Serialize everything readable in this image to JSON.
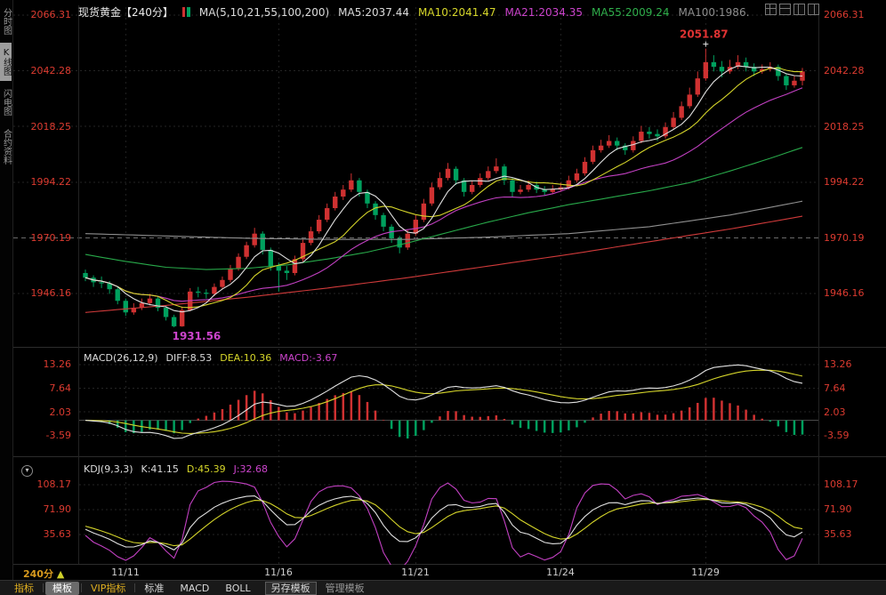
{
  "header": {
    "title": "现货黄金【240分】",
    "ma_group": "MA(5,10,21,55,100,200)",
    "ma_values": [
      {
        "label": "MA5:2037.44"
      },
      {
        "label": "MA10:2041.47"
      },
      {
        "label": "MA21:2034.35"
      },
      {
        "label": "MA55:2009.24"
      },
      {
        "label": "MA100:1986."
      }
    ]
  },
  "sidebar": {
    "items": [
      {
        "label": "分时图",
        "selected": false
      },
      {
        "label": "K线图",
        "selected": true
      },
      {
        "label": "闪电图",
        "selected": false
      },
      {
        "label": "合约资料",
        "selected": false
      }
    ]
  },
  "main": {
    "y_labels": [
      "2066.31",
      "2042.28",
      "2018.25",
      "1994.22",
      "1970.19",
      "1946.16"
    ],
    "high_annotation": "2051.87",
    "low_annotation": "1931.56"
  },
  "macd": {
    "header": "MACD(26,12,9)",
    "diff_label": "DIFF:8.53",
    "dea_label": "DEA:10.36",
    "macd_label": "MACD:-3.67",
    "y_labels": [
      "13.26",
      "7.64",
      "2.03",
      "-3.59"
    ]
  },
  "kdj": {
    "header": "KDJ(9,3,3)",
    "k_label": "K:41.15",
    "d_label": "D:45.39",
    "j_label": "J:32.68",
    "y_labels": [
      "108.17",
      "71.90",
      "35.63"
    ]
  },
  "footer": {
    "period_label": "240分",
    "period_arrow": "▲",
    "x_labels": [
      "11/11",
      "11/16",
      "11/21",
      "11/24",
      "11/29"
    ]
  },
  "toolbar": {
    "items": [
      {
        "label": "指标"
      },
      {
        "label": "模板"
      },
      {
        "label": "VIP指标"
      },
      {
        "label": "标准"
      },
      {
        "label": "MACD"
      },
      {
        "label": "BOLL"
      },
      {
        "label": "另存模板"
      },
      {
        "label": "管理模板"
      }
    ]
  },
  "chart_data": {
    "type": "candlestick",
    "instrument": "现货黄金",
    "period": "240分",
    "y_axis": [
      2066.31,
      2042.28,
      2018.25,
      1994.22,
      1970.19,
      1946.16
    ],
    "x_axis": [
      {
        "label": "11/11",
        "index": 5
      },
      {
        "label": "11/16",
        "index": 24
      },
      {
        "label": "11/21",
        "index": 41
      },
      {
        "label": "11/24",
        "index": 59
      },
      {
        "label": "11/29",
        "index": 77
      }
    ],
    "colors": {
      "up": "#cf3131",
      "down": "#00a05e",
      "ma5": "#e0e0e0",
      "ma10": "#d4d42a",
      "ma21": "#c240c2",
      "ma55": "#28a94a",
      "ma100": "#8f8f8f",
      "ma200": "#cf3a3a",
      "diff": "#e0e0e0",
      "dea": "#d4d42a",
      "k": "#e0e0e0",
      "d": "#d4d42a",
      "j": "#c240c2",
      "axis_text": "#dd3b30"
    },
    "candles": [
      [
        1955,
        1956.5,
        1951.5,
        1953
      ],
      [
        1953,
        1954,
        1949,
        1951
      ],
      [
        1951,
        1953.5,
        1948.5,
        1950.5
      ],
      [
        1950.5,
        1951.5,
        1946,
        1948
      ],
      [
        1948,
        1949,
        1941.5,
        1943
      ],
      [
        1943,
        1944,
        1936.5,
        1938
      ],
      [
        1938,
        1942,
        1937,
        1940
      ],
      [
        1940,
        1944,
        1939,
        1942
      ],
      [
        1942,
        1946,
        1941,
        1944
      ],
      [
        1944,
        1945,
        1938.5,
        1940
      ],
      [
        1940,
        1941,
        1934.5,
        1936
      ],
      [
        1936,
        1937,
        1931.56,
        1932
      ],
      [
        1932,
        1940.5,
        1931.8,
        1939
      ],
      [
        1939,
        1948.5,
        1938.5,
        1947
      ],
      [
        1947,
        1949,
        1944.5,
        1946.5
      ],
      [
        1946.5,
        1948,
        1944,
        1946
      ],
      [
        1946,
        1950.5,
        1945,
        1949
      ],
      [
        1949,
        1953.5,
        1948,
        1952
      ],
      [
        1952,
        1958.5,
        1951,
        1957
      ],
      [
        1957,
        1963.5,
        1956,
        1962
      ],
      [
        1962,
        1968.5,
        1961,
        1967
      ],
      [
        1967,
        1974.5,
        1966,
        1972
      ],
      [
        1972,
        1973,
        1963,
        1965
      ],
      [
        1965,
        1966,
        1956,
        1958
      ],
      [
        1958,
        1959.5,
        1947,
        1956
      ],
      [
        1956,
        1958,
        1952,
        1955
      ],
      [
        1955,
        1962.5,
        1954,
        1961
      ],
      [
        1961,
        1969.5,
        1960,
        1968
      ],
      [
        1968,
        1975,
        1967,
        1973
      ],
      [
        1973,
        1980,
        1972,
        1978
      ],
      [
        1978,
        1985,
        1977,
        1983
      ],
      [
        1983,
        1990,
        1982,
        1988
      ],
      [
        1988,
        1993,
        1986.5,
        1991
      ],
      [
        1991,
        1998,
        1990,
        1995
      ],
      [
        1995,
        1996,
        1988,
        1990
      ],
      [
        1990,
        1991,
        1983,
        1985
      ],
      [
        1985,
        1986,
        1978,
        1980
      ],
      [
        1980,
        1981,
        1973,
        1975
      ],
      [
        1975,
        1976,
        1968,
        1970
      ],
      [
        1970,
        1971,
        1963.5,
        1966
      ],
      [
        1966,
        1973.5,
        1965,
        1972
      ],
      [
        1972,
        1980,
        1971,
        1978
      ],
      [
        1978,
        1987,
        1977,
        1985
      ],
      [
        1985,
        1994,
        1984,
        1992
      ],
      [
        1992,
        1998.5,
        1991,
        1996
      ],
      [
        1996,
        2002.5,
        1995,
        2000
      ],
      [
        2000,
        2001,
        1993,
        1995
      ],
      [
        1995,
        1996,
        1988,
        1990
      ],
      [
        1990,
        1995,
        1989,
        1993
      ],
      [
        1993,
        1998,
        1992,
        1996
      ],
      [
        1996,
        2001,
        1995,
        1999
      ],
      [
        1999,
        2004.5,
        1998,
        2001
      ],
      [
        2001,
        2002,
        1993,
        1995
      ],
      [
        1995,
        1996,
        1988,
        1990
      ],
      [
        1990,
        1993,
        1989,
        1991
      ],
      [
        1991,
        1995,
        1990,
        1993
      ],
      [
        1993,
        1994.5,
        1989.5,
        1991
      ],
      [
        1991,
        1992.5,
        1988.5,
        1990
      ],
      [
        1990,
        1993,
        1989,
        1991
      ],
      [
        1991,
        1994,
        1990,
        1992
      ],
      [
        1992,
        1997,
        1991,
        1995
      ],
      [
        1995,
        2000,
        1994,
        1998
      ],
      [
        1998,
        2005,
        1997,
        2003
      ],
      [
        2003,
        2010,
        2002,
        2008
      ],
      [
        2008,
        2012.5,
        2007,
        2010
      ],
      [
        2010,
        2014.5,
        2009,
        2012
      ],
      [
        2012,
        2013.5,
        2008,
        2010
      ],
      [
        2010,
        2011,
        2006,
        2008
      ],
      [
        2008,
        2014,
        2007,
        2012
      ],
      [
        2012,
        2018.5,
        2011,
        2016
      ],
      [
        2016,
        2018,
        2013,
        2015
      ],
      [
        2015,
        2017,
        2012,
        2014
      ],
      [
        2014,
        2020,
        2013,
        2018
      ],
      [
        2018,
        2024.5,
        2017,
        2022
      ],
      [
        2022,
        2029,
        2021,
        2027
      ],
      [
        2027,
        2035,
        2026,
        2032
      ],
      [
        2032,
        2042,
        2031,
        2039
      ],
      [
        2039,
        2051.87,
        2038,
        2046
      ],
      [
        2046,
        2049,
        2042,
        2044
      ],
      [
        2044,
        2046.5,
        2039.5,
        2042
      ],
      [
        2042,
        2047,
        2041,
        2044
      ],
      [
        2044,
        2049,
        2043,
        2046
      ],
      [
        2046,
        2048,
        2042,
        2044
      ],
      [
        2044,
        2045.5,
        2040,
        2042
      ],
      [
        2042,
        2045,
        2041,
        2043
      ],
      [
        2043,
        2046,
        2042,
        2044
      ],
      [
        2044,
        2045,
        2038,
        2040
      ],
      [
        2040,
        2041,
        2034,
        2036
      ],
      [
        2036,
        2040,
        2035,
        2038
      ],
      [
        2038,
        2043.5,
        2036,
        2042
      ]
    ],
    "overlays": {
      "ma55_points": [
        [
          0,
          1963
        ],
        [
          5,
          1960
        ],
        [
          10,
          1957.5
        ],
        [
          15,
          1956.5
        ],
        [
          20,
          1957
        ],
        [
          25,
          1958.5
        ],
        [
          30,
          1961
        ],
        [
          35,
          1964
        ],
        [
          40,
          1968
        ],
        [
          45,
          1972.5
        ],
        [
          50,
          1977
        ],
        [
          55,
          1981
        ],
        [
          60,
          1984.5
        ],
        [
          65,
          1987.5
        ],
        [
          70,
          1990.5
        ],
        [
          75,
          1994
        ],
        [
          80,
          1999
        ],
        [
          85,
          2004.5
        ],
        [
          89,
          2009.2
        ]
      ],
      "ma100_points": [
        [
          0,
          1972
        ],
        [
          10,
          1971
        ],
        [
          20,
          1970
        ],
        [
          30,
          1969.5
        ],
        [
          40,
          1969.5
        ],
        [
          50,
          1970.5
        ],
        [
          60,
          1972
        ],
        [
          70,
          1975
        ],
        [
          80,
          1980
        ],
        [
          89,
          1986
        ]
      ],
      "ma200_points": [
        [
          0,
          1938
        ],
        [
          10,
          1941
        ],
        [
          20,
          1944.5
        ],
        [
          30,
          1948.5
        ],
        [
          40,
          1953
        ],
        [
          50,
          1958
        ],
        [
          60,
          1963
        ],
        [
          70,
          1968.5
        ],
        [
          80,
          1974
        ],
        [
          89,
          1979.5
        ]
      ]
    },
    "annotations": {
      "high": {
        "index": 77,
        "price": 2051.87,
        "text": "2051.87"
      },
      "low": {
        "index": 11,
        "price": 1931.56,
        "text": "1931.56"
      }
    },
    "macd": {
      "params": [
        26,
        12,
        9
      ],
      "diff": 8.53,
      "dea": 10.36,
      "macd": -3.67,
      "y_ticks": [
        13.26,
        7.64,
        2.03,
        -3.59
      ]
    },
    "kdj": {
      "params": [
        9,
        3,
        3
      ],
      "k": 41.15,
      "d": 45.39,
      "j": 32.68,
      "y_ticks": [
        108.17,
        71.9,
        35.63
      ]
    }
  }
}
